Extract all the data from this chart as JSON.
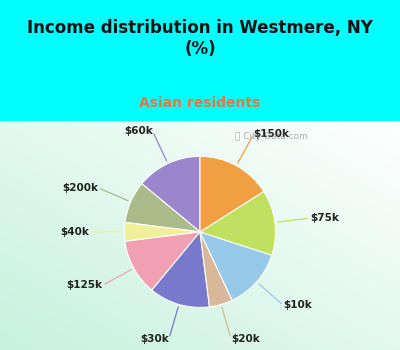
{
  "title": "Income distribution in Westmere, NY\n(%)",
  "subtitle": "Asian residents",
  "title_color": "#111111",
  "subtitle_color": "#e07840",
  "bg_cyan": "#00ffff",
  "labels": [
    "$60k",
    "$200k",
    "$40k",
    "$125k",
    "$30k",
    "$20k",
    "$10k",
    "$75k",
    "$150k"
  ],
  "values": [
    14,
    9,
    4,
    12,
    13,
    5,
    13,
    14,
    16
  ],
  "colors": [
    "#9b85cc",
    "#a8bb88",
    "#f0f09a",
    "#f0a0b0",
    "#7878cc",
    "#d8b898",
    "#96c8e8",
    "#c0e060",
    "#f0a040"
  ],
  "startangle": 90,
  "watermark": "ⓘ City-Data.com"
}
